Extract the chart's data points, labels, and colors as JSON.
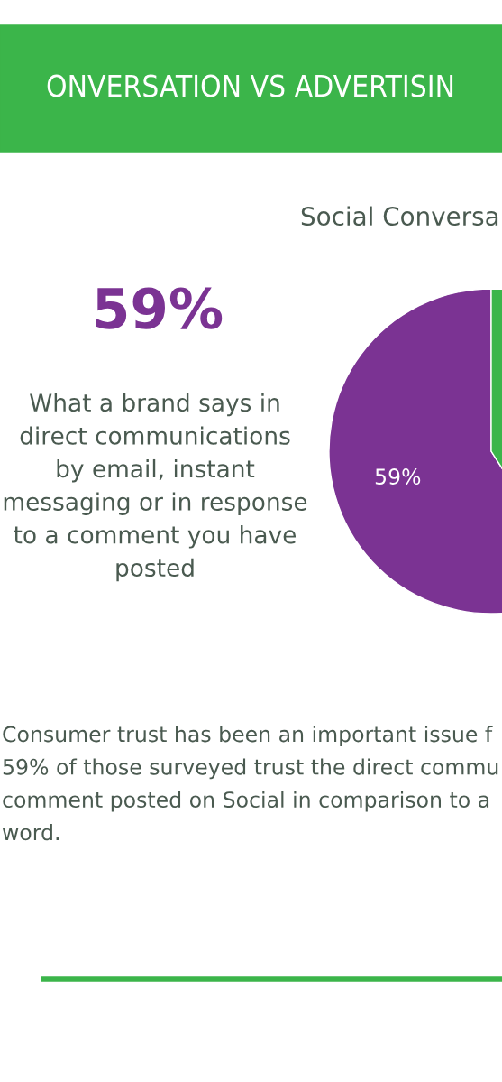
{
  "chart_data": {
    "type": "pie",
    "title": "ONVERSATION VS ADVERTISIN",
    "subtitle": "Social Conversa",
    "categories": [
      null,
      null
    ],
    "values": [
      59,
      41
    ],
    "colors": [
      "#7b3393",
      "#3bb54a"
    ],
    "value_labels": [
      "59%",
      null
    ],
    "legend": false,
    "annotations": [
      "59%",
      "What a brand says in\ndirect communications\nby email, instant\nmessaging or in response\nto a comment you have\nposted",
      "Consumer trust has been an important issue f\n59% of those surveyed trust the direct commu\ncomment posted on Social in comparison to a\nword."
    ]
  }
}
